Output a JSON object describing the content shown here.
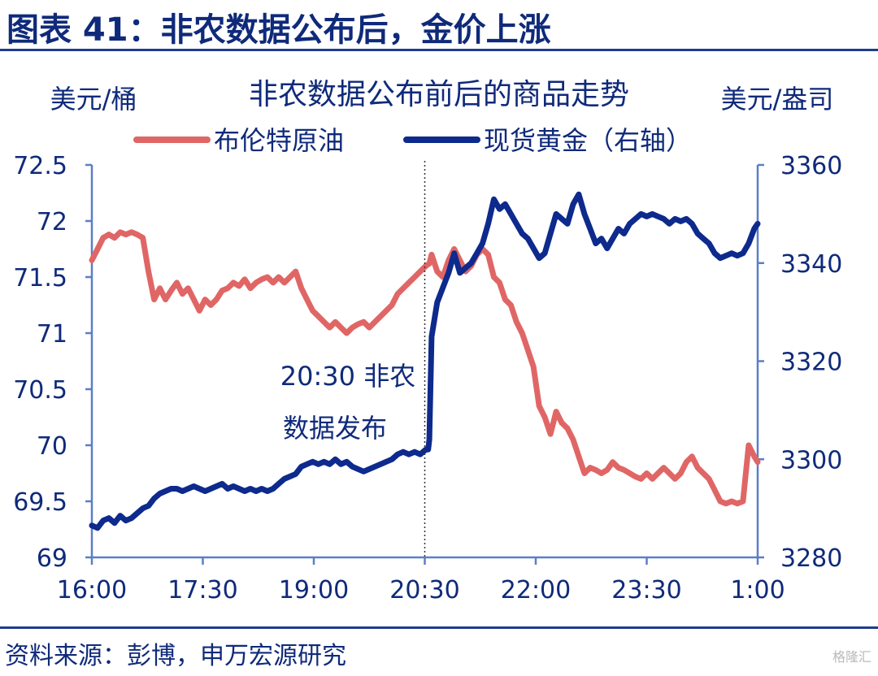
{
  "figure": {
    "title": "图表 41：非农数据公布后，金价上涨",
    "source": "资料来源：彭博，申万宏源研究",
    "watermark": "格隆汇"
  },
  "chart_data": {
    "type": "line",
    "title": "非农数据公布前后的商品走势",
    "ylabel_left": "美元/桶",
    "ylabel_right": "美元/盎司",
    "x_ticks": [
      "16:00",
      "17:30",
      "19:00",
      "20:30",
      "22:00",
      "23:30",
      "1:00"
    ],
    "y_left_ticks": [
      "72.5",
      "72",
      "71.5",
      "71",
      "70.5",
      "70",
      "69.5",
      "69"
    ],
    "y_right_ticks": [
      "3360",
      "3340",
      "3320",
      "3300",
      "3280"
    ],
    "ylim_left": [
      69,
      72.5
    ],
    "ylim_right": [
      3280,
      3360
    ],
    "legend_position": "top",
    "grid": false,
    "annotation": {
      "lines": [
        "20:30 非农",
        "数据发布"
      ],
      "x": "20:30"
    },
    "series": [
      {
        "name": "布伦特原油",
        "axis": "left",
        "color": "#e06666",
        "points": [
          [
            0,
            71.65
          ],
          [
            5,
            71.75
          ],
          [
            10,
            71.85
          ],
          [
            15,
            71.88
          ],
          [
            20,
            71.85
          ],
          [
            25,
            71.9
          ],
          [
            30,
            71.88
          ],
          [
            35,
            71.9
          ],
          [
            40,
            71.88
          ],
          [
            45,
            71.85
          ],
          [
            50,
            71.55
          ],
          [
            55,
            71.3
          ],
          [
            60,
            71.4
          ],
          [
            65,
            71.3
          ],
          [
            70,
            71.38
          ],
          [
            75,
            71.45
          ],
          [
            80,
            71.35
          ],
          [
            85,
            71.4
          ],
          [
            90,
            71.3
          ],
          [
            95,
            71.2
          ],
          [
            100,
            71.3
          ],
          [
            105,
            71.25
          ],
          [
            110,
            71.3
          ],
          [
            115,
            71.38
          ],
          [
            120,
            71.4
          ],
          [
            125,
            71.45
          ],
          [
            130,
            71.42
          ],
          [
            135,
            71.48
          ],
          [
            140,
            71.4
          ],
          [
            145,
            71.45
          ],
          [
            150,
            71.48
          ],
          [
            155,
            71.5
          ],
          [
            160,
            71.45
          ],
          [
            165,
            71.5
          ],
          [
            170,
            71.45
          ],
          [
            175,
            71.5
          ],
          [
            180,
            71.55
          ],
          [
            185,
            71.4
          ],
          [
            190,
            71.3
          ],
          [
            195,
            71.2
          ],
          [
            200,
            71.15
          ],
          [
            205,
            71.1
          ],
          [
            210,
            71.05
          ],
          [
            215,
            71.1
          ],
          [
            220,
            71.05
          ],
          [
            225,
            71.0
          ],
          [
            230,
            71.05
          ],
          [
            235,
            71.08
          ],
          [
            240,
            71.1
          ],
          [
            245,
            71.05
          ],
          [
            250,
            71.1
          ],
          [
            255,
            71.15
          ],
          [
            260,
            71.2
          ],
          [
            265,
            71.25
          ],
          [
            270,
            71.35
          ],
          [
            275,
            71.4
          ],
          [
            280,
            71.45
          ],
          [
            285,
            71.5
          ],
          [
            290,
            71.55
          ],
          [
            295,
            71.6
          ],
          [
            298,
            71.62
          ],
          [
            300,
            71.7
          ],
          [
            305,
            71.55
          ],
          [
            310,
            71.5
          ],
          [
            315,
            71.65
          ],
          [
            320,
            71.75
          ],
          [
            325,
            71.65
          ],
          [
            330,
            71.55
          ],
          [
            335,
            71.6
          ],
          [
            340,
            71.7
          ],
          [
            345,
            71.75
          ],
          [
            350,
            71.7
          ],
          [
            355,
            71.5
          ],
          [
            360,
            71.45
          ],
          [
            365,
            71.3
          ],
          [
            370,
            71.25
          ],
          [
            375,
            71.1
          ],
          [
            380,
            71.0
          ],
          [
            385,
            70.85
          ],
          [
            390,
            70.7
          ],
          [
            395,
            70.35
          ],
          [
            400,
            70.25
          ],
          [
            405,
            70.1
          ],
          [
            410,
            70.3
          ],
          [
            415,
            70.2
          ],
          [
            420,
            70.15
          ],
          [
            425,
            70.05
          ],
          [
            430,
            69.9
          ],
          [
            435,
            69.75
          ],
          [
            440,
            69.8
          ],
          [
            445,
            69.78
          ],
          [
            450,
            69.75
          ],
          [
            455,
            69.78
          ],
          [
            460,
            69.85
          ],
          [
            465,
            69.8
          ],
          [
            470,
            69.78
          ],
          [
            475,
            69.75
          ],
          [
            480,
            69.72
          ],
          [
            485,
            69.7
          ],
          [
            490,
            69.75
          ],
          [
            495,
            69.7
          ],
          [
            500,
            69.75
          ],
          [
            505,
            69.8
          ],
          [
            510,
            69.75
          ],
          [
            515,
            69.7
          ],
          [
            520,
            69.75
          ],
          [
            525,
            69.85
          ],
          [
            530,
            69.9
          ],
          [
            535,
            69.8
          ],
          [
            540,
            69.75
          ],
          [
            545,
            69.7
          ],
          [
            550,
            69.6
          ],
          [
            555,
            69.5
          ],
          [
            560,
            69.48
          ],
          [
            565,
            69.5
          ],
          [
            570,
            69.48
          ],
          [
            575,
            69.5
          ],
          [
            580,
            70.0
          ],
          [
            585,
            69.9
          ],
          [
            588,
            69.85
          ]
        ]
      },
      {
        "name": "现货黄金（右轴）",
        "axis": "right",
        "color": "#0d2a8c",
        "points": [
          [
            0,
            3286.5
          ],
          [
            5,
            3286
          ],
          [
            10,
            3287.5
          ],
          [
            15,
            3288
          ],
          [
            20,
            3287
          ],
          [
            25,
            3288.5
          ],
          [
            30,
            3287.5
          ],
          [
            35,
            3288
          ],
          [
            40,
            3289
          ],
          [
            45,
            3290
          ],
          [
            50,
            3290.5
          ],
          [
            55,
            3292
          ],
          [
            60,
            3293
          ],
          [
            65,
            3293.5
          ],
          [
            70,
            3294
          ],
          [
            75,
            3294
          ],
          [
            80,
            3293.5
          ],
          [
            85,
            3294
          ],
          [
            90,
            3294.5
          ],
          [
            95,
            3294
          ],
          [
            100,
            3293.5
          ],
          [
            105,
            3294
          ],
          [
            110,
            3294.5
          ],
          [
            115,
            3295
          ],
          [
            120,
            3294
          ],
          [
            125,
            3294.5
          ],
          [
            130,
            3294
          ],
          [
            135,
            3293.5
          ],
          [
            140,
            3294
          ],
          [
            145,
            3293.5
          ],
          [
            150,
            3294
          ],
          [
            155,
            3293.5
          ],
          [
            160,
            3294
          ],
          [
            165,
            3295
          ],
          [
            170,
            3296
          ],
          [
            175,
            3296.5
          ],
          [
            180,
            3297
          ],
          [
            185,
            3298.5
          ],
          [
            190,
            3299
          ],
          [
            195,
            3299.5
          ],
          [
            200,
            3299
          ],
          [
            205,
            3299.5
          ],
          [
            210,
            3299
          ],
          [
            215,
            3300
          ],
          [
            220,
            3299
          ],
          [
            225,
            3299.5
          ],
          [
            230,
            3298.5
          ],
          [
            235,
            3298
          ],
          [
            240,
            3297.5
          ],
          [
            245,
            3298
          ],
          [
            250,
            3298.5
          ],
          [
            255,
            3299
          ],
          [
            260,
            3299.5
          ],
          [
            265,
            3300
          ],
          [
            270,
            3301
          ],
          [
            275,
            3301.5
          ],
          [
            280,
            3301
          ],
          [
            285,
            3301.5
          ],
          [
            290,
            3301
          ],
          [
            295,
            3302
          ],
          [
            297,
            3302
          ],
          [
            298,
            3304
          ],
          [
            300,
            3325
          ],
          [
            305,
            3332
          ],
          [
            310,
            3335
          ],
          [
            315,
            3338
          ],
          [
            320,
            3342
          ],
          [
            325,
            3338
          ],
          [
            330,
            3339
          ],
          [
            335,
            3340
          ],
          [
            340,
            3342
          ],
          [
            345,
            3344
          ],
          [
            350,
            3348
          ],
          [
            355,
            3353
          ],
          [
            360,
            3351
          ],
          [
            365,
            3352
          ],
          [
            370,
            3350
          ],
          [
            375,
            3348
          ],
          [
            380,
            3346
          ],
          [
            385,
            3345
          ],
          [
            390,
            3343
          ],
          [
            395,
            3341
          ],
          [
            400,
            3342
          ],
          [
            405,
            3346
          ],
          [
            410,
            3350
          ],
          [
            415,
            3349
          ],
          [
            420,
            3348
          ],
          [
            425,
            3352
          ],
          [
            430,
            3354
          ],
          [
            435,
            3350
          ],
          [
            440,
            3347
          ],
          [
            445,
            3344
          ],
          [
            450,
            3345
          ],
          [
            455,
            3343
          ],
          [
            460,
            3345
          ],
          [
            465,
            3347
          ],
          [
            470,
            3346
          ],
          [
            475,
            3348
          ],
          [
            480,
            3349
          ],
          [
            485,
            3350
          ],
          [
            490,
            3349.5
          ],
          [
            495,
            3350
          ],
          [
            500,
            3349.5
          ],
          [
            505,
            3349
          ],
          [
            510,
            3348
          ],
          [
            515,
            3349
          ],
          [
            520,
            3348.5
          ],
          [
            525,
            3349
          ],
          [
            530,
            3348
          ],
          [
            535,
            3346
          ],
          [
            540,
            3345
          ],
          [
            545,
            3344
          ],
          [
            550,
            3342
          ],
          [
            555,
            3341
          ],
          [
            560,
            3341.5
          ],
          [
            565,
            3342
          ],
          [
            570,
            3341.5
          ],
          [
            575,
            3342
          ],
          [
            580,
            3344
          ],
          [
            585,
            3347
          ],
          [
            588,
            3348
          ]
        ]
      }
    ]
  }
}
